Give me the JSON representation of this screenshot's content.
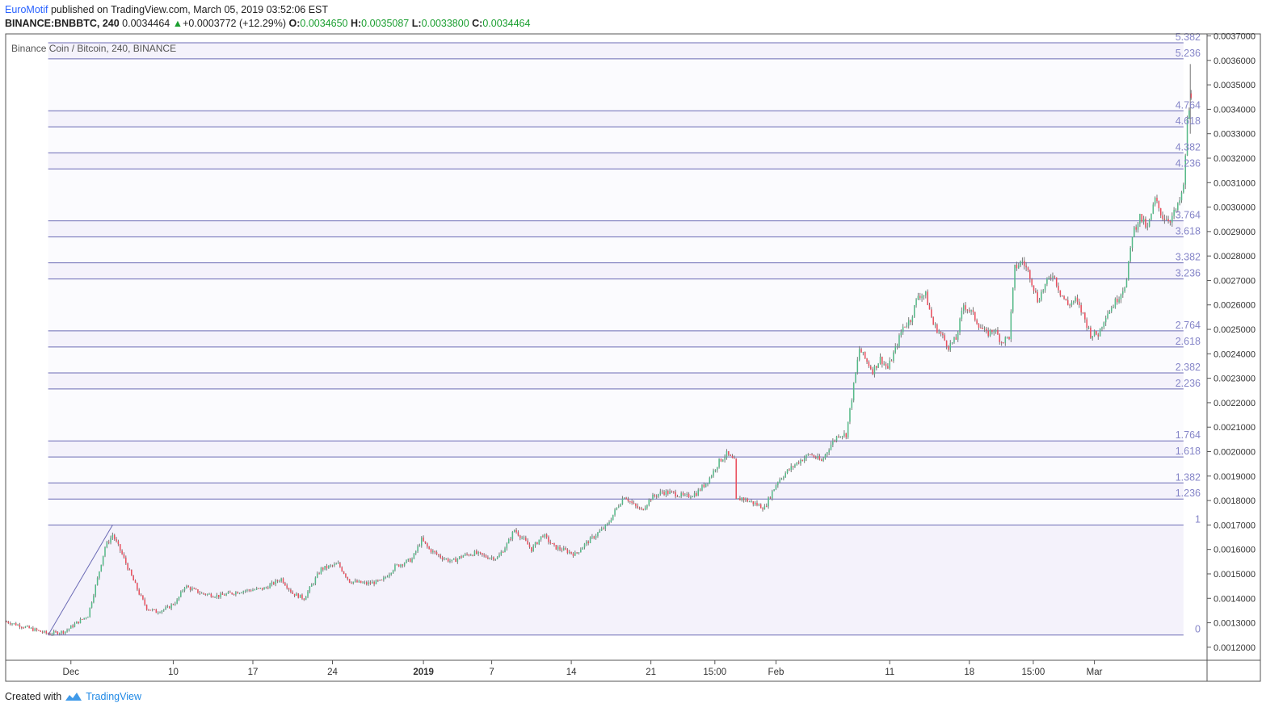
{
  "header": {
    "author": "EuroMotif",
    "published_text": "published on TradingView.com, March 05, 2019 03:52:06 EST",
    "symbol": "BINANCE:BNBBTC, 240",
    "last": "0.0034464",
    "change_arrow": "▲",
    "change": "+0.0003772 (+12.29%)",
    "open_label": "O:",
    "open": "0.0034650",
    "high_label": "H:",
    "high": "0.0035087",
    "low_label": "L:",
    "low": "0.0033800",
    "close_label": "C:",
    "close": "0.0034464"
  },
  "chart_title": "Binance Coin / Bitcoin, 240, BINANCE",
  "footer": {
    "created_with": "Created with",
    "brand": "TradingView"
  },
  "colors": {
    "up": "#53b987",
    "down": "#eb4d5c",
    "fib_line": "#6b6bb5",
    "fib_fill": "#f4f2fb",
    "fib_text": "#8585c8",
    "axis_text": "#333333",
    "frame": "#555555"
  },
  "chart_data": {
    "type": "candlestick",
    "y_axis": {
      "min": 0.00115,
      "max": 0.003705,
      "ticks": [
        "0.0012000",
        "0.0013000",
        "0.0014000",
        "0.0015000",
        "0.0016000",
        "0.0017000",
        "0.0018000",
        "0.0019000",
        "0.0020000",
        "0.0021000",
        "0.0022000",
        "0.0023000",
        "0.0024000",
        "0.0025000",
        "0.0026000",
        "0.0027000",
        "0.0028000",
        "0.0029000",
        "0.0030000",
        "0.0031000",
        "0.0032000",
        "0.0033000",
        "0.0034000",
        "0.0035000",
        "0.0036000",
        "0.0037000"
      ]
    },
    "x_axis": {
      "start": "2018-11-25T08:00",
      "end": "2019-03-10T20:00",
      "ticks": [
        {
          "label": "Dec",
          "at": "2018-12-01T00:00",
          "bold": false
        },
        {
          "label": "10",
          "at": "2018-12-10T00:00",
          "bold": false
        },
        {
          "label": "17",
          "at": "2018-12-17T00:00",
          "bold": false
        },
        {
          "label": "24",
          "at": "2018-12-24T00:00",
          "bold": false
        },
        {
          "label": "2019",
          "at": "2019-01-01T00:00",
          "bold": true
        },
        {
          "label": "7",
          "at": "2019-01-07T00:00",
          "bold": false
        },
        {
          "label": "14",
          "at": "2019-01-14T00:00",
          "bold": false
        },
        {
          "label": "21",
          "at": "2019-01-21T00:00",
          "bold": false
        },
        {
          "label": "15:00",
          "at": "2019-01-26T15:00",
          "bold": false
        },
        {
          "label": "Feb",
          "at": "2019-02-01T00:00",
          "bold": false
        },
        {
          "label": "11",
          "at": "2019-02-11T00:00",
          "bold": false
        },
        {
          "label": "18",
          "at": "2019-02-18T00:00",
          "bold": false
        },
        {
          "label": "15:00",
          "at": "2019-02-23T15:00",
          "bold": false
        },
        {
          "label": "Mar",
          "at": "2019-03-01T00:00",
          "bold": false
        }
      ]
    },
    "fib_extension": {
      "anchor_start": {
        "time": "2018-11-29T00:00",
        "price": 0.00125
      },
      "anchor_end": {
        "time": "2018-12-04T16:00",
        "price": 0.0017
      },
      "levels_start": "2018-11-29T00:00",
      "levels_end": "2019-03-08T20:00",
      "levels": [
        {
          "label": "0",
          "price": 0.00125
        },
        {
          "label": "1",
          "price": 0.0017
        },
        {
          "label": "1.236",
          "price": 0.0018062
        },
        {
          "label": "1.382",
          "price": 0.0018719
        },
        {
          "label": "1.618",
          "price": 0.0019781
        },
        {
          "label": "1.764",
          "price": 0.0020438
        },
        {
          "label": "2.236",
          "price": 0.0022562
        },
        {
          "label": "2.382",
          "price": 0.0023219
        },
        {
          "label": "2.618",
          "price": 0.0024281
        },
        {
          "label": "2.764",
          "price": 0.0024938
        },
        {
          "label": "3.236",
          "price": 0.0027062
        },
        {
          "label": "3.382",
          "price": 0.0027719
        },
        {
          "label": "3.618",
          "price": 0.0028781
        },
        {
          "label": "3.764",
          "price": 0.0029438
        },
        {
          "label": "4.236",
          "price": 0.0031562
        },
        {
          "label": "4.382",
          "price": 0.0032219
        },
        {
          "label": "4.618",
          "price": 0.0033281
        },
        {
          "label": "4.764",
          "price": 0.0033938
        },
        {
          "label": "5.236",
          "price": 0.0036062
        },
        {
          "label": "5.382",
          "price": 0.0036719
        }
      ]
    },
    "candle_interval_hours": 4,
    "price_path": [
      [
        "2018-11-25T08:00",
        0.001305
      ],
      [
        "2018-11-27T12:00",
        0.001275
      ],
      [
        "2018-11-29T00:00",
        0.001255
      ],
      [
        "2018-11-30T12:00",
        0.001265
      ],
      [
        "2018-12-01T12:00",
        0.0013
      ],
      [
        "2018-12-02T12:00",
        0.00133
      ],
      [
        "2018-12-03T08:00",
        0.00148
      ],
      [
        "2018-12-04T00:00",
        0.00161
      ],
      [
        "2018-12-04T16:00",
        0.00166
      ],
      [
        "2018-12-05T12:00",
        0.00158
      ],
      [
        "2018-12-06T08:00",
        0.00149
      ],
      [
        "2018-12-07T00:00",
        0.00142
      ],
      [
        "2018-12-07T16:00",
        0.00136
      ],
      [
        "2018-12-08T12:00",
        0.001345
      ],
      [
        "2018-12-09T12:00",
        0.00136
      ],
      [
        "2018-12-10T08:00",
        0.00139
      ],
      [
        "2018-12-11T00:00",
        0.00145
      ],
      [
        "2018-12-12T12:00",
        0.00142
      ],
      [
        "2018-12-14T00:00",
        0.00141
      ],
      [
        "2018-12-16T00:00",
        0.00143
      ],
      [
        "2018-12-18T00:00",
        0.00144
      ],
      [
        "2018-12-19T12:00",
        0.00148
      ],
      [
        "2018-12-20T12:00",
        0.00142
      ],
      [
        "2018-12-21T12:00",
        0.0014
      ],
      [
        "2018-12-23T00:00",
        0.00152
      ],
      [
        "2018-12-24T12:00",
        0.00154
      ],
      [
        "2018-12-25T12:00",
        0.00147
      ],
      [
        "2018-12-27T00:00",
        0.00146
      ],
      [
        "2018-12-28T08:00",
        0.00147
      ],
      [
        "2018-12-29T12:00",
        0.00153
      ],
      [
        "2018-12-31T00:00",
        0.00156
      ],
      [
        "2018-12-31T20:00",
        0.00164
      ],
      [
        "2019-01-01T12:00",
        0.0016
      ],
      [
        "2019-01-02T12:00",
        0.00157
      ],
      [
        "2019-01-03T12:00",
        0.00155
      ],
      [
        "2019-01-04T12:00",
        0.001575
      ],
      [
        "2019-01-05T12:00",
        0.001585
      ],
      [
        "2019-01-06T12:00",
        0.00157
      ],
      [
        "2019-01-07T12:00",
        0.001565
      ],
      [
        "2019-01-08T08:00",
        0.00162
      ],
      [
        "2019-01-09T00:00",
        0.00168
      ],
      [
        "2019-01-09T20:00",
        0.00164
      ],
      [
        "2019-01-10T12:00",
        0.0016
      ],
      [
        "2019-01-11T12:00",
        0.00166
      ],
      [
        "2019-01-12T12:00",
        0.00161
      ],
      [
        "2019-01-13T12:00",
        0.001595
      ],
      [
        "2019-01-14T08:00",
        0.00158
      ],
      [
        "2019-01-15T04:00",
        0.00162
      ],
      [
        "2019-01-16T04:00",
        0.00166
      ],
      [
        "2019-01-17T04:00",
        0.0017
      ],
      [
        "2019-01-18T00:00",
        0.00177
      ],
      [
        "2019-01-18T16:00",
        0.00182
      ],
      [
        "2019-01-19T12:00",
        0.00178
      ],
      [
        "2019-01-20T04:00",
        0.00176
      ],
      [
        "2019-01-21T00:00",
        0.00181
      ],
      [
        "2019-01-22T00:00",
        0.001835
      ],
      [
        "2019-01-23T00:00",
        0.00183
      ],
      [
        "2019-01-24T00:00",
        0.001815
      ],
      [
        "2019-01-25T00:00",
        0.00183
      ],
      [
        "2019-01-26T00:00",
        0.00188
      ],
      [
        "2019-01-27T00:00",
        0.00196
      ],
      [
        "2019-01-27T16:00",
        0.00199
      ],
      [
        "2019-01-28T08:00",
        0.00196
      ],
      [
        "2019-01-28T12:00",
        0.0018
      ],
      [
        "2019-01-29T00:00",
        0.00181
      ],
      [
        "2019-01-30T00:00",
        0.00179
      ],
      [
        "2019-01-31T00:00",
        0.00177
      ],
      [
        "2019-01-31T12:00",
        0.00182
      ],
      [
        "2019-02-01T04:00",
        0.00188
      ],
      [
        "2019-02-02T00:00",
        0.00192
      ],
      [
        "2019-02-03T00:00",
        0.00196
      ],
      [
        "2019-02-04T00:00",
        0.00199
      ],
      [
        "2019-02-05T00:00",
        0.00196
      ],
      [
        "2019-02-05T20:00",
        0.00203
      ],
      [
        "2019-02-06T12:00",
        0.00207
      ],
      [
        "2019-02-07T04:00",
        0.00207
      ],
      [
        "2019-02-07T20:00",
        0.00227
      ],
      [
        "2019-02-08T08:00",
        0.00242
      ],
      [
        "2019-02-08T20:00",
        0.00238
      ],
      [
        "2019-02-09T12:00",
        0.00233
      ],
      [
        "2019-02-10T04:00",
        0.00238
      ],
      [
        "2019-02-10T20:00",
        0.00234
      ],
      [
        "2019-02-11T12:00",
        0.00242
      ],
      [
        "2019-02-12T04:00",
        0.00251
      ],
      [
        "2019-02-12T20:00",
        0.00254
      ],
      [
        "2019-02-13T12:00",
        0.00264
      ],
      [
        "2019-02-14T04:00",
        0.00264
      ],
      [
        "2019-02-14T20:00",
        0.00252
      ],
      [
        "2019-02-15T12:00",
        0.00248
      ],
      [
        "2019-02-16T04:00",
        0.00243
      ],
      [
        "2019-02-16T20:00",
        0.00246
      ],
      [
        "2019-02-17T12:00",
        0.0026
      ],
      [
        "2019-02-18T04:00",
        0.00257
      ],
      [
        "2019-02-18T20:00",
        0.00252
      ],
      [
        "2019-02-19T12:00",
        0.00248
      ],
      [
        "2019-02-20T04:00",
        0.0025
      ],
      [
        "2019-02-20T20:00",
        0.00245
      ],
      [
        "2019-02-21T12:00",
        0.00247
      ],
      [
        "2019-02-22T00:00",
        0.00275
      ],
      [
        "2019-02-22T16:00",
        0.00278
      ],
      [
        "2019-02-23T08:00",
        0.00272
      ],
      [
        "2019-02-24T00:00",
        0.00262
      ],
      [
        "2019-02-24T16:00",
        0.00268
      ],
      [
        "2019-02-25T08:00",
        0.00273
      ],
      [
        "2019-02-26T00:00",
        0.00265
      ],
      [
        "2019-02-26T16:00",
        0.0026
      ],
      [
        "2019-02-27T08:00",
        0.00262
      ],
      [
        "2019-02-28T00:00",
        0.00256
      ],
      [
        "2019-02-28T16:00",
        0.00248
      ],
      [
        "2019-03-01T08:00",
        0.00248
      ],
      [
        "2019-03-02T00:00",
        0.00256
      ],
      [
        "2019-03-02T16:00",
        0.0026
      ],
      [
        "2019-03-03T08:00",
        0.00265
      ],
      [
        "2019-03-03T20:00",
        0.0027
      ],
      [
        "2019-03-04T08:00",
        0.00289
      ],
      [
        "2019-03-05T00:00",
        0.00296
      ],
      [
        "2019-03-05T16:00",
        0.00291
      ],
      [
        "2019-03-06T08:00",
        0.00303
      ],
      [
        "2019-03-07T00:00",
        0.00296
      ],
      [
        "2019-03-07T16:00",
        0.00295
      ],
      [
        "2019-03-08T08:00",
        0.003
      ],
      [
        "2019-03-08T20:00",
        0.00308
      ],
      [
        "2019-03-09T04:00",
        0.00335
      ],
      [
        "2019-03-09T12:00",
        0.003446
      ]
    ],
    "last_candle": {
      "open": 0.003465,
      "high": 0.0035087,
      "low": 0.00338,
      "close": 0.0034464
    }
  }
}
